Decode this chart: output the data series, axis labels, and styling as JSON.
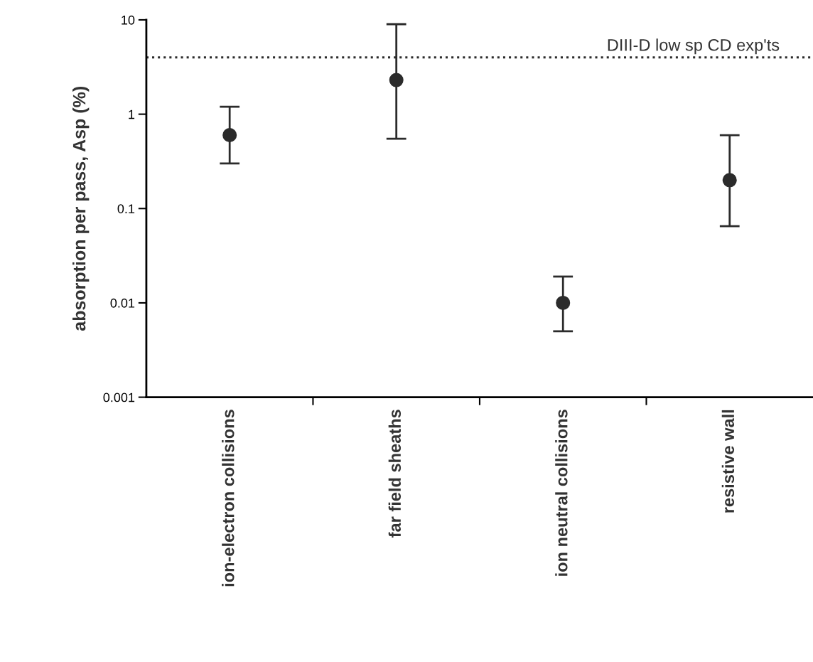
{
  "chart_data": {
    "type": "scatter",
    "ylabel": "absorption per pass, Asp (%)",
    "categories": [
      "ion-electron collisions",
      "far field sheaths",
      "ion neutral collisions",
      "resistive wall"
    ],
    "series": [
      {
        "color": "#2b2b2b",
        "values": [
          0.6,
          2.3,
          0.01,
          0.2
        ],
        "errors": [
          [
            0.3,
            1.2
          ],
          [
            0.55,
            9
          ],
          [
            0.005,
            0.019
          ],
          [
            0.065,
            0.6
          ]
        ]
      }
    ],
    "log": "y",
    "ylim": [
      0.001,
      10
    ],
    "yticks": [
      0.001,
      0.01,
      0.1,
      1,
      10
    ],
    "ref_lines": [
      {
        "axis": "y",
        "value": 4,
        "label": "DIII-D low sp CD exp'ts",
        "color": "#2b2b2b",
        "line_style": "dotted"
      }
    ],
    "marker": "circle",
    "grid": false,
    "legend": false
  }
}
